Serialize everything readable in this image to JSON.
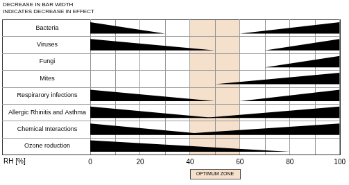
{
  "chart_data": {
    "type": "wedge",
    "note": [
      "DECREASE IN BAR WIDTH",
      "INDICATES DECREASE IN EFFECT"
    ],
    "x_label": "RH [%]",
    "xlim": [
      0,
      100
    ],
    "xticks": [
      0,
      20,
      40,
      60,
      80,
      100
    ],
    "grid": true,
    "color": "#000000",
    "rows": [
      {
        "label": "Bacteria",
        "wedges": [
          {
            "full": 0,
            "zero": 30
          },
          {
            "full": 100,
            "zero": 60
          }
        ]
      },
      {
        "label": "Viruses",
        "wedges": [
          {
            "full": 0,
            "zero": 50
          },
          {
            "full": 100,
            "zero": 70
          }
        ]
      },
      {
        "label": "Fungi",
        "wedges": [
          {
            "full": 100,
            "zero": 70
          }
        ]
      },
      {
        "label": "Mites",
        "wedges": [
          {
            "full": 100,
            "zero": 50
          }
        ]
      },
      {
        "label": "Respirarory infections",
        "wedges": [
          {
            "full": 0,
            "zero": 50
          },
          {
            "full": 100,
            "zero": 60
          }
        ]
      },
      {
        "label": "Allergic Rhinitis and Asthma",
        "wedges": [
          {
            "full": 0,
            "zero": 50
          },
          {
            "full": 100,
            "zero": 45
          }
        ]
      },
      {
        "label": "Chemical Interactions",
        "wedges": [
          {
            "full": 0,
            "zero": 50
          },
          {
            "full": 100,
            "zero": 30
          }
        ]
      },
      {
        "label": "Ozone roduction",
        "wedges": [
          {
            "full": 0,
            "zero": 80
          }
        ]
      }
    ],
    "annotations": [
      {
        "range": [
          40,
          60
        ],
        "label": "OPTIMUM ZONE",
        "color": "#f5e0cc"
      }
    ]
  }
}
